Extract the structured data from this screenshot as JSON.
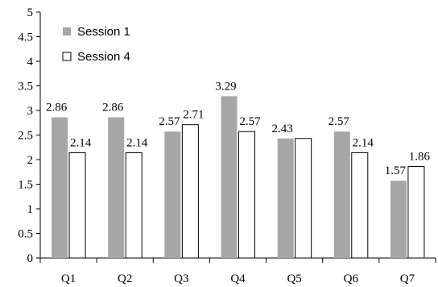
{
  "chart_data": {
    "type": "bar",
    "categories": [
      "Q1",
      "Q2",
      "Q3",
      "Q4",
      "Q5",
      "Q6",
      "Q7"
    ],
    "series": [
      {
        "name": "Session 1",
        "values": [
          2.86,
          2.86,
          2.57,
          3.29,
          2.43,
          2.57,
          1.57
        ],
        "color": "#a6a6a6"
      },
      {
        "name": "Session 4",
        "values": [
          2.14,
          2.14,
          2.71,
          2.57,
          2.43,
          2.14,
          1.86
        ],
        "color": "#ffffff"
      }
    ],
    "ylim": [
      0,
      5
    ],
    "yticks": [
      "0",
      "0.5",
      "1",
      "1.5",
      "2",
      "2.5",
      "3",
      "3.5",
      "4",
      "4.5",
      "5"
    ],
    "data_labels": [
      [
        "2.86",
        "2.86",
        "2.57",
        "3.29",
        "2.43",
        "2.57",
        "1.57"
      ],
      [
        "2.14",
        "2.14",
        "2.71",
        "2.57",
        "",
        "2.14",
        "1.86"
      ]
    ],
    "grid": false,
    "legend_position": "top-left"
  }
}
